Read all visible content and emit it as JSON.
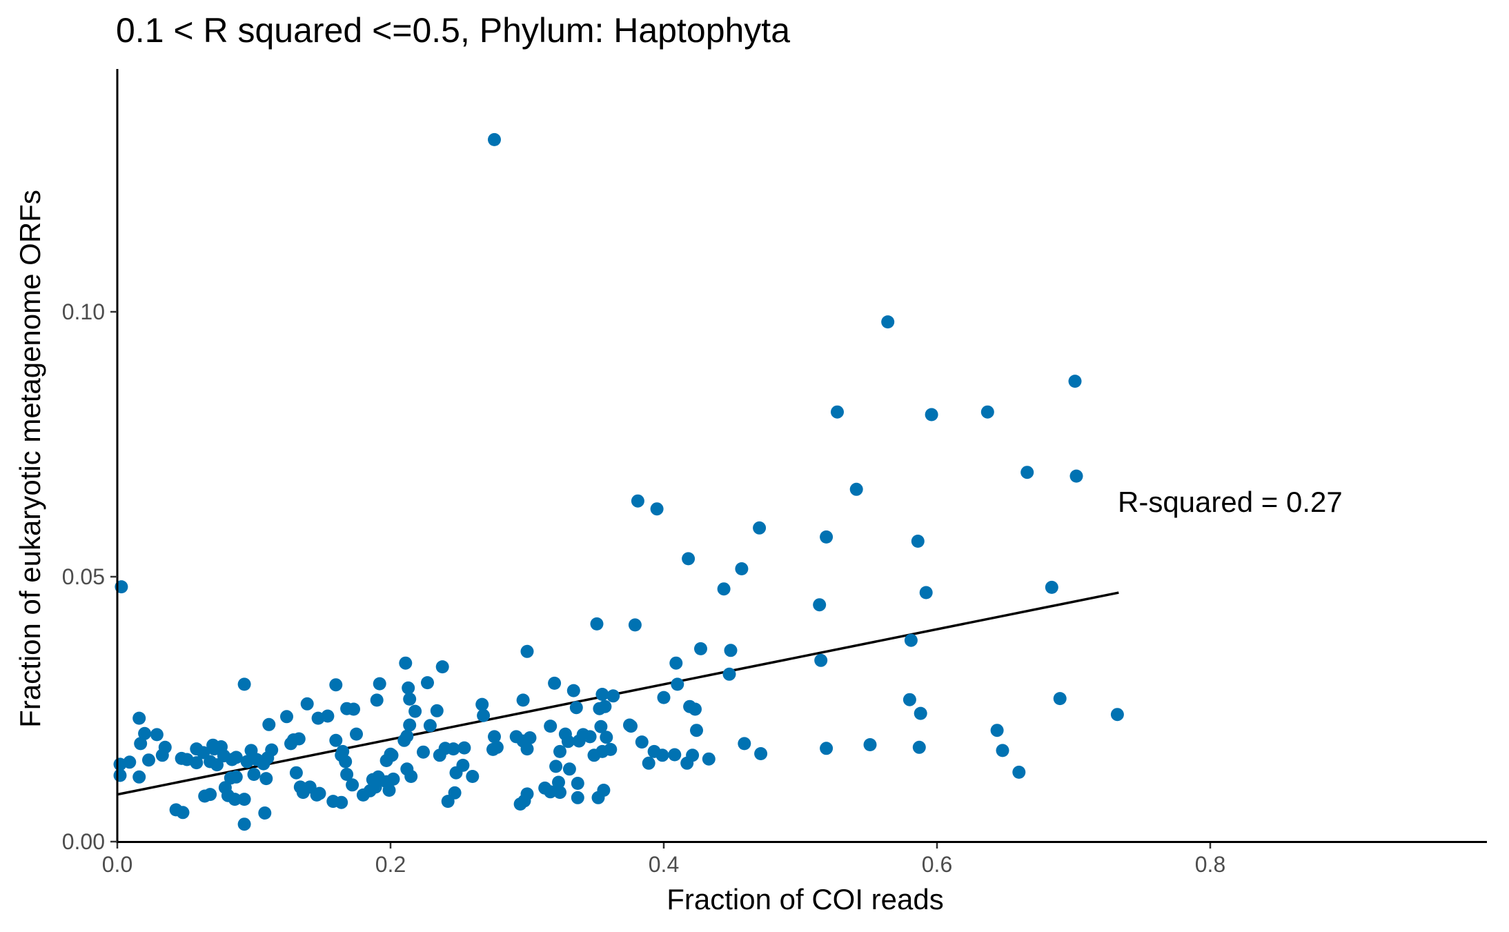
{
  "chart_data": {
    "type": "scatter",
    "title": "0.1 < R squared <=0.5, Phylum:  Haptophyta",
    "xlabel": "Fraction of COI reads",
    "ylabel": "Fraction of eukaryotic metagenome ORFs",
    "xlim": [
      0,
      0.8
    ],
    "ylim": [
      0,
      0.14
    ],
    "x_ticks": [
      {
        "value": 0.0,
        "label": "0.0"
      },
      {
        "value": 0.2,
        "label": "0.2"
      },
      {
        "value": 0.4,
        "label": "0.4"
      },
      {
        "value": 0.6,
        "label": "0.6"
      },
      {
        "value": 0.8,
        "label": "0.8"
      }
    ],
    "y_ticks": [
      {
        "value": 0.0,
        "label": "0.00"
      },
      {
        "value": 0.05,
        "label": "0.05"
      },
      {
        "value": 0.1,
        "label": "0.10"
      }
    ],
    "grid": false,
    "point_color": "#0072B2",
    "annotation": "R-squared =  0.27",
    "fit_line": {
      "x": [
        0.0,
        0.733
      ],
      "y": [
        0.0089,
        0.047
      ]
    },
    "points": [
      [
        0.003,
        0.0481
      ],
      [
        0.276,
        0.1325
      ],
      [
        0.564,
        0.0981
      ],
      [
        0.701,
        0.0869
      ],
      [
        0.527,
        0.0811
      ],
      [
        0.596,
        0.0806
      ],
      [
        0.637,
        0.0811
      ],
      [
        0.666,
        0.0697
      ],
      [
        0.702,
        0.069
      ],
      [
        0.541,
        0.0665
      ],
      [
        0.381,
        0.0643
      ],
      [
        0.395,
        0.0628
      ],
      [
        0.47,
        0.0592
      ],
      [
        0.519,
        0.0575
      ],
      [
        0.586,
        0.0567
      ],
      [
        0.418,
        0.0534
      ],
      [
        0.457,
        0.0515
      ],
      [
        0.444,
        0.0477
      ],
      [
        0.684,
        0.048
      ],
      [
        0.592,
        0.047
      ],
      [
        0.514,
        0.0447
      ],
      [
        0.351,
        0.0411
      ],
      [
        0.379,
        0.0409
      ],
      [
        0.581,
        0.038
      ],
      [
        0.3,
        0.0359
      ],
      [
        0.427,
        0.0364
      ],
      [
        0.449,
        0.0361
      ],
      [
        0.211,
        0.0337
      ],
      [
        0.238,
        0.033
      ],
      [
        0.409,
        0.0337
      ],
      [
        0.515,
        0.0342
      ],
      [
        0.448,
        0.0316
      ],
      [
        0.093,
        0.0297
      ],
      [
        0.16,
        0.0296
      ],
      [
        0.192,
        0.0298
      ],
      [
        0.213,
        0.029
      ],
      [
        0.227,
        0.03
      ],
      [
        0.32,
        0.0299
      ],
      [
        0.334,
        0.0285
      ],
      [
        0.41,
        0.0297
      ],
      [
        0.214,
        0.0269
      ],
      [
        0.19,
        0.0267
      ],
      [
        0.297,
        0.0267
      ],
      [
        0.355,
        0.0278
      ],
      [
        0.363,
        0.0275
      ],
      [
        0.4,
        0.0272
      ],
      [
        0.58,
        0.0268
      ],
      [
        0.69,
        0.027
      ],
      [
        0.139,
        0.026
      ],
      [
        0.168,
        0.0251
      ],
      [
        0.173,
        0.025
      ],
      [
        0.218,
        0.0246
      ],
      [
        0.234,
        0.0247
      ],
      [
        0.267,
        0.0259
      ],
      [
        0.336,
        0.0253
      ],
      [
        0.353,
        0.0251
      ],
      [
        0.357,
        0.0255
      ],
      [
        0.419,
        0.0255
      ],
      [
        0.423,
        0.025
      ],
      [
        0.588,
        0.0242
      ],
      [
        0.732,
        0.024
      ],
      [
        0.016,
        0.0233
      ],
      [
        0.124,
        0.0236
      ],
      [
        0.147,
        0.0233
      ],
      [
        0.154,
        0.0237
      ],
      [
        0.268,
        0.0238
      ],
      [
        0.111,
        0.0221
      ],
      [
        0.214,
        0.022
      ],
      [
        0.229,
        0.0219
      ],
      [
        0.317,
        0.0218
      ],
      [
        0.354,
        0.0217
      ],
      [
        0.375,
        0.022
      ],
      [
        0.376,
        0.0218
      ],
      [
        0.424,
        0.021
      ],
      [
        0.644,
        0.021
      ],
      [
        0.02,
        0.0204
      ],
      [
        0.029,
        0.0202
      ],
      [
        0.175,
        0.0203
      ],
      [
        0.21,
        0.0191
      ],
      [
        0.212,
        0.0199
      ],
      [
        0.276,
        0.0198
      ],
      [
        0.292,
        0.0198
      ],
      [
        0.302,
        0.0196
      ],
      [
        0.328,
        0.0203
      ],
      [
        0.341,
        0.0202
      ],
      [
        0.346,
        0.0198
      ],
      [
        0.358,
        0.0197
      ],
      [
        0.129,
        0.0192
      ],
      [
        0.133,
        0.0194
      ],
      [
        0.16,
        0.0191
      ],
      [
        0.297,
        0.019
      ],
      [
        0.33,
        0.0189
      ],
      [
        0.338,
        0.019
      ],
      [
        0.384,
        0.0188
      ],
      [
        0.459,
        0.0185
      ],
      [
        0.551,
        0.0183
      ],
      [
        0.017,
        0.0185
      ],
      [
        0.035,
        0.0178
      ],
      [
        0.058,
        0.0175
      ],
      [
        0.07,
        0.0182
      ],
      [
        0.076,
        0.0179
      ],
      [
        0.098,
        0.0172
      ],
      [
        0.113,
        0.0173
      ],
      [
        0.127,
        0.0185
      ],
      [
        0.165,
        0.017
      ],
      [
        0.201,
        0.0163
      ],
      [
        0.236,
        0.0163
      ],
      [
        0.24,
        0.0176
      ],
      [
        0.246,
        0.0175
      ],
      [
        0.254,
        0.0177
      ],
      [
        0.275,
        0.0174
      ],
      [
        0.278,
        0.0178
      ],
      [
        0.3,
        0.0175
      ],
      [
        0.324,
        0.017
      ],
      [
        0.349,
        0.0163
      ],
      [
        0.355,
        0.017
      ],
      [
        0.361,
        0.0174
      ],
      [
        0.393,
        0.017
      ],
      [
        0.399,
        0.0163
      ],
      [
        0.408,
        0.0164
      ],
      [
        0.421,
        0.0163
      ],
      [
        0.471,
        0.0166
      ],
      [
        0.519,
        0.0176
      ],
      [
        0.587,
        0.0178
      ],
      [
        0.648,
        0.0172
      ],
      [
        0.009,
        0.015
      ],
      [
        0.023,
        0.0154
      ],
      [
        0.033,
        0.0163
      ],
      [
        0.047,
        0.0157
      ],
      [
        0.051,
        0.0155
      ],
      [
        0.058,
        0.0149
      ],
      [
        0.063,
        0.0168
      ],
      [
        0.068,
        0.0151
      ],
      [
        0.071,
        0.0175
      ],
      [
        0.073,
        0.0145
      ],
      [
        0.078,
        0.0162
      ],
      [
        0.084,
        0.0155
      ],
      [
        0.087,
        0.0159
      ],
      [
        0.095,
        0.0151
      ],
      [
        0.102,
        0.0155
      ],
      [
        0.107,
        0.0147
      ],
      [
        0.11,
        0.0158
      ],
      [
        0.164,
        0.0163
      ],
      [
        0.167,
        0.0151
      ],
      [
        0.197,
        0.0153
      ],
      [
        0.2,
        0.0165
      ],
      [
        0.224,
        0.0169
      ],
      [
        0.212,
        0.0137
      ],
      [
        0.253,
        0.0144
      ],
      [
        0.321,
        0.0142
      ],
      [
        0.331,
        0.0137
      ],
      [
        0.389,
        0.0148
      ],
      [
        0.417,
        0.0148
      ],
      [
        0.433,
        0.0156
      ],
      [
        0.66,
        0.0131
      ],
      [
        0.002,
        0.0146
      ],
      [
        0.002,
        0.0125
      ],
      [
        0.016,
        0.0122
      ],
      [
        0.083,
        0.012
      ],
      [
        0.087,
        0.0122
      ],
      [
        0.1,
        0.0127
      ],
      [
        0.109,
        0.0119
      ],
      [
        0.131,
        0.013
      ],
      [
        0.168,
        0.0127
      ],
      [
        0.187,
        0.0117
      ],
      [
        0.191,
        0.0122
      ],
      [
        0.197,
        0.0113
      ],
      [
        0.202,
        0.0118
      ],
      [
        0.215,
        0.0123
      ],
      [
        0.248,
        0.013
      ],
      [
        0.26,
        0.0123
      ],
      [
        0.323,
        0.0112
      ],
      [
        0.337,
        0.011
      ],
      [
        0.079,
        0.0102
      ],
      [
        0.134,
        0.0103
      ],
      [
        0.141,
        0.0103
      ],
      [
        0.172,
        0.0107
      ],
      [
        0.185,
        0.0096
      ],
      [
        0.189,
        0.0103
      ],
      [
        0.199,
        0.0097
      ],
      [
        0.313,
        0.0101
      ],
      [
        0.317,
        0.0094
      ],
      [
        0.324,
        0.0093
      ],
      [
        0.356,
        0.0097
      ],
      [
        0.136,
        0.0093
      ],
      [
        0.146,
        0.0088
      ],
      [
        0.148,
        0.0091
      ],
      [
        0.18,
        0.0088
      ],
      [
        0.064,
        0.0086
      ],
      [
        0.068,
        0.0089
      ],
      [
        0.081,
        0.0087
      ],
      [
        0.247,
        0.0092
      ],
      [
        0.3,
        0.009
      ],
      [
        0.337,
        0.0083
      ],
      [
        0.352,
        0.0083
      ],
      [
        0.086,
        0.008
      ],
      [
        0.093,
        0.008
      ],
      [
        0.158,
        0.0076
      ],
      [
        0.164,
        0.0074
      ],
      [
        0.242,
        0.0076
      ],
      [
        0.295,
        0.0071
      ],
      [
        0.298,
        0.0077
      ],
      [
        0.043,
        0.006
      ],
      [
        0.048,
        0.0055
      ],
      [
        0.108,
        0.0054
      ],
      [
        0.093,
        0.0033
      ]
    ]
  }
}
